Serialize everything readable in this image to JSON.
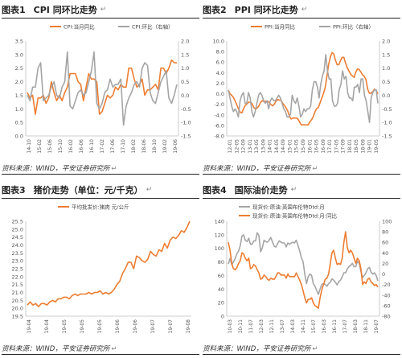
{
  "return_mark": "↵",
  "charts": [
    {
      "fig_no": "图表1",
      "title": "CPI 同环比走势",
      "source": "资料来源：WIND，平安证券研究所",
      "y2": true,
      "legend": [
        {
          "name": "CPI:当月同比",
          "color": "#ED7D31"
        },
        {
          "name": "CPI:环比（右轴）",
          "color": "#A5A5A5"
        }
      ],
      "y_left": {
        "min": 0.0,
        "max": 3.5,
        "ticks": [
          "0.0",
          "0.5",
          "1.0",
          "1.5",
          "2.0",
          "2.5",
          "3.0",
          "3.5"
        ]
      },
      "y_right": {
        "min": -1.5,
        "max": 2.0,
        "ticks": [
          "-1.5",
          "-1.0",
          "-0.5",
          "0.0",
          "0.5",
          "1.0",
          "1.5",
          "2.0"
        ]
      },
      "x_ticks": [
        "14-10",
        "15-02",
        "15-06",
        "15-10",
        "16-02",
        "16-06",
        "16-10",
        "17-02",
        "17-06",
        "17-10",
        "18-02",
        "18-06",
        "18-10",
        "19-02",
        "19-06"
      ]
    },
    {
      "fig_no": "图表2",
      "title": "PPI 同环比走势",
      "source": "资料来源：WIND，平安证券研究所",
      "y2": true,
      "legend": [
        {
          "name": "PPI:当月同比",
          "color": "#ED7D31"
        },
        {
          "name": "PPI:环比（右轴）",
          "color": "#A5A5A5"
        }
      ],
      "y_left": {
        "min": -8,
        "max": 10,
        "ticks": [
          "-8.0",
          "-6.0",
          "-4.0",
          "-2.0",
          "0.0",
          "2.0",
          "4.0",
          "6.0",
          "8.0",
          "10.0"
        ]
      },
      "y_right": {
        "min": -1.5,
        "max": 2.0,
        "ticks": [
          "-1.5",
          "-1.0",
          "-0.5",
          "0.0",
          "0.5",
          "1.0",
          "1.5",
          "2.0"
        ]
      },
      "x_ticks": [
        "12-01",
        "12-05",
        "12-09",
        "13-01",
        "13-05",
        "13-09",
        "14-01",
        "14-05",
        "14-09",
        "15-01",
        "15-05",
        "15-09",
        "16-01",
        "16-05",
        "16-09",
        "17-01",
        "17-05",
        "17-09",
        "18-01",
        "18-05",
        "18-09",
        "19-01",
        "19-05"
      ]
    },
    {
      "fig_no": "图表3",
      "title": "猪价走势（单位：元/千克）",
      "source": "资料来源：WIND，平安证券研究所",
      "y2": false,
      "legend": [
        {
          "name": "平均批发价:猪肉 元/公斤",
          "color": "#ED7D31"
        }
      ],
      "y_left": {
        "min": 19.5,
        "max": 25.5,
        "ticks": [
          "19.5",
          "20.0",
          "20.5",
          "21.0",
          "21.5",
          "22.0",
          "22.5",
          "23.0",
          "23.5",
          "24.0",
          "24.5",
          "25.0",
          "25.5"
        ]
      },
      "x_ticks": [
        "19-04",
        "19-04",
        "19-05",
        "19-05",
        "19-05",
        "19-06",
        "19-06",
        "19-07",
        "19-07",
        "19-08"
      ]
    },
    {
      "fig_no": "图表4",
      "title": "国际油价走势",
      "source": "资料来源：WIND，平安证券研究所",
      "y2": true,
      "legend": [
        {
          "name": "现货价:原油:英国布伦特Dtd:月",
          "color": "#A5A5A5"
        },
        {
          "name": "现货价:原油:英国布伦特Dtd:月:同比",
          "color": "#ED7D31"
        }
      ],
      "y_left": {
        "min": 0,
        "max": 140,
        "ticks": [
          "0",
          "20",
          "40",
          "60",
          "80",
          "100",
          "120",
          "140"
        ]
      },
      "y_right": {
        "min": -80,
        "max": 100,
        "ticks": [
          "-80",
          "-60",
          "-40",
          "-20",
          "0",
          "20",
          "40",
          "60",
          "80",
          "100"
        ]
      },
      "x_ticks": [
        "10-03",
        "10-11",
        "11-07",
        "12-03",
        "12-11",
        "13-07",
        "14-03",
        "14-11",
        "15-07",
        "16-03",
        "16-11",
        "17-07",
        "18-03",
        "18-11",
        "19-07"
      ]
    }
  ],
  "chart_data": [
    {
      "type": "line",
      "title": "CPI 同环比走势",
      "series": [
        {
          "name": "CPI:当月同比",
          "axis": "left",
          "values": [
            1.6,
            1.4,
            1.5,
            0.8,
            1.4,
            1.4,
            1.5,
            1.2,
            1.4,
            2.0,
            1.6,
            1.3,
            1.5,
            1.3,
            1.6,
            1.8,
            2.3,
            2.3,
            2.3,
            2.0,
            1.9,
            1.3,
            1.8,
            2.3,
            2.1,
            2.1,
            2.0,
            0.8,
            0.9,
            1.2,
            1.5,
            1.4,
            1.5,
            1.8,
            1.7,
            1.9,
            1.8,
            1.8,
            2.5,
            2.5,
            2.1,
            1.8,
            1.9,
            2.1,
            1.5,
            1.7,
            1.7,
            1.8,
            1.9,
            1.7,
            2.5,
            2.5,
            2.3,
            2.5,
            2.8,
            2.7,
            2.7
          ]
        },
        {
          "name": "CPI:环比（右轴）",
          "axis": "right",
          "values": [
            0.0,
            -0.2,
            0.3,
            0.3,
            1.0,
            1.2,
            -0.2,
            -0.1,
            0.0,
            0.3,
            0.5,
            0.0,
            -0.1,
            0.3,
            0.5,
            1.6,
            -0.4,
            -0.5,
            -0.2,
            0.1,
            0.2,
            0.0,
            0.1,
            0.5,
            0.9,
            1.6,
            -0.3,
            -0.5,
            -0.3,
            0.1,
            0.2,
            0.6,
            0.3,
            0.4,
            0.4,
            0.6,
            -1.1,
            -0.4,
            -0.1,
            0.1,
            0.4,
            0.5,
            0.3,
            1.0,
            1.2,
            1.1,
            0.1,
            -0.2,
            -0.3,
            0.1,
            0.5,
            0.7,
            0.9,
            -0.1,
            -0.3,
            0.0,
            0.4
          ]
        }
      ]
    },
    {
      "type": "line",
      "title": "PPI 同环比走势",
      "series": [
        {
          "name": "PPI:当月同比",
          "axis": "left",
          "values": [
            0.7,
            0.0,
            -0.3,
            -0.7,
            -1.4,
            -2.1,
            -2.9,
            -3.5,
            -3.6,
            -2.8,
            -2.2,
            -1.9,
            -1.6,
            -1.6,
            -1.9,
            -2.6,
            -2.9,
            -2.7,
            -2.3,
            -1.6,
            -1.3,
            -1.5,
            -1.4,
            -1.4,
            -1.6,
            -2.0,
            -2.3,
            -2.0,
            -1.4,
            -1.1,
            -1.2,
            -1.2,
            -1.8,
            -2.2,
            -2.7,
            -3.3,
            -4.3,
            -4.8,
            -4.6,
            -4.6,
            -4.6,
            -4.8,
            -5.4,
            -5.9,
            -5.9,
            -5.9,
            -5.9,
            -5.9,
            -5.3,
            -4.9,
            -4.3,
            -3.4,
            -2.8,
            -2.6,
            -1.7,
            -0.8,
            0.1,
            1.2,
            3.3,
            5.5,
            6.9,
            7.8,
            7.6,
            6.4,
            5.5,
            5.5,
            6.3,
            6.9,
            6.9,
            5.8,
            4.9,
            4.3,
            3.7,
            3.4,
            3.1,
            4.1,
            4.7,
            4.6,
            4.1,
            3.6,
            3.3,
            2.7,
            0.9,
            0.1,
            0.1,
            0.4,
            0.9,
            0.6,
            0.0
          ]
        },
        {
          "name": "PPI:环比（右轴）",
          "axis": "right",
          "values": [
            0.2,
            -0.1,
            -0.4,
            -0.6,
            -0.5,
            -0.6,
            -0.8,
            -0.2,
            0.0,
            0.1,
            -0.3,
            -0.3,
            0.1,
            -0.1,
            -0.6,
            -0.8,
            -0.6,
            -0.3,
            0.0,
            0.1,
            0.0,
            -0.2,
            -0.3,
            -0.2,
            -0.5,
            -0.2,
            -0.1,
            -0.2,
            -0.2,
            -0.1,
            0.0,
            -0.1,
            -0.3,
            -0.5,
            -0.6,
            -0.8,
            -0.8,
            -0.7,
            0.0,
            -0.2,
            -0.3,
            -0.1,
            -0.4,
            -0.8,
            -0.7,
            -0.5,
            -0.6,
            -0.5,
            -0.5,
            -0.4,
            0.2,
            0.5,
            0.5,
            0.3,
            -0.1,
            0.4,
            0.7,
            0.9,
            1.5,
            0.9,
            0.6,
            0.6,
            -0.2,
            -0.4,
            -0.4,
            -0.3,
            0.2,
            0.4,
            0.9,
            0.6,
            0.7,
            0.1,
            -0.1,
            -0.1,
            -0.2,
            0.3,
            0.3,
            0.4,
            0.1,
            0.6,
            0.6,
            0.0,
            -0.2,
            -0.6,
            -1.0,
            -0.1,
            0.1,
            0.2,
            0.2,
            -0.3
          ]
        }
      ]
    },
    {
      "type": "line",
      "title": "猪价走势（单位：元/千克）",
      "series": [
        {
          "name": "平均批发价:猪肉 元/公斤",
          "axis": "left",
          "values": [
            20.2,
            20.4,
            20.2,
            20.3,
            20.1,
            20.3,
            20.3,
            20.2,
            20.4,
            20.5,
            20.4,
            20.6,
            20.6,
            20.7,
            20.7,
            20.6,
            20.8,
            20.9,
            20.8,
            20.9,
            20.9,
            20.9,
            21.0,
            20.9,
            21.0,
            21.0,
            21.1,
            20.9,
            21.0,
            20.9,
            21.0,
            21.2,
            21.5,
            21.7,
            22.2,
            22.5,
            22.9,
            22.9,
            22.5,
            23.3,
            23.2,
            23.0,
            22.9,
            23.1,
            23.6,
            23.4,
            23.3,
            23.7,
            23.6,
            24.1,
            23.8,
            24.3,
            24.5,
            24.4,
            24.6,
            24.9,
            24.8,
            25.1,
            25.5
          ]
        }
      ]
    },
    {
      "type": "line",
      "title": "国际油价走势",
      "series": [
        {
          "name": "现货价:原油:英国布伦特Dtd:月",
          "axis": "left",
          "values": [
            77,
            85,
            76,
            80,
            85,
            92,
            96,
            104,
            118,
            120,
            112,
            110,
            115,
            106,
            106,
            111,
            111,
            123,
            119,
            95,
            101,
            112,
            110,
            109,
            112,
            116,
            109,
            103,
            102,
            107,
            111,
            109,
            108,
            108,
            102,
            108,
            106,
            108,
            109,
            108,
            112,
            104,
            96,
            86,
            80,
            62,
            48,
            58,
            62,
            60,
            48,
            44,
            38,
            32,
            40,
            47,
            48,
            47,
            44,
            48,
            50,
            55,
            53,
            50,
            46,
            51,
            53,
            58,
            64,
            64,
            70,
            73,
            75,
            78,
            73,
            73,
            81,
            78,
            66,
            57,
            60,
            64,
            70,
            72,
            65,
            62,
            64,
            60,
            52
          ]
        },
        {
          "name": "现货价:原油:英国布伦特Dtd:月:同比",
          "axis": "right",
          "values": [
            60,
            45,
            20,
            10,
            8,
            12,
            20,
            25,
            40,
            38,
            30,
            25,
            30,
            10,
            12,
            18,
            15,
            8,
            2,
            -10,
            -8,
            -2,
            -5,
            -10,
            -12,
            -8,
            -10,
            -10,
            -5,
            2,
            2,
            -2,
            -2,
            -2,
            -8,
            0,
            -5,
            -5,
            -5,
            -5,
            2,
            -5,
            -12,
            -20,
            -32,
            -45,
            -55,
            -48,
            -48,
            -45,
            -55,
            -60,
            -62,
            -65,
            -45,
            -30,
            -20,
            -10,
            -8,
            0,
            20,
            40,
            45,
            30,
            18,
            20,
            18,
            30,
            60,
            80,
            50,
            40,
            45,
            40,
            30,
            20,
            30,
            25,
            10,
            -20,
            -15,
            -18,
            -10,
            -8,
            -15,
            -18,
            -22,
            -20,
            -25
          ]
        }
      ]
    }
  ]
}
